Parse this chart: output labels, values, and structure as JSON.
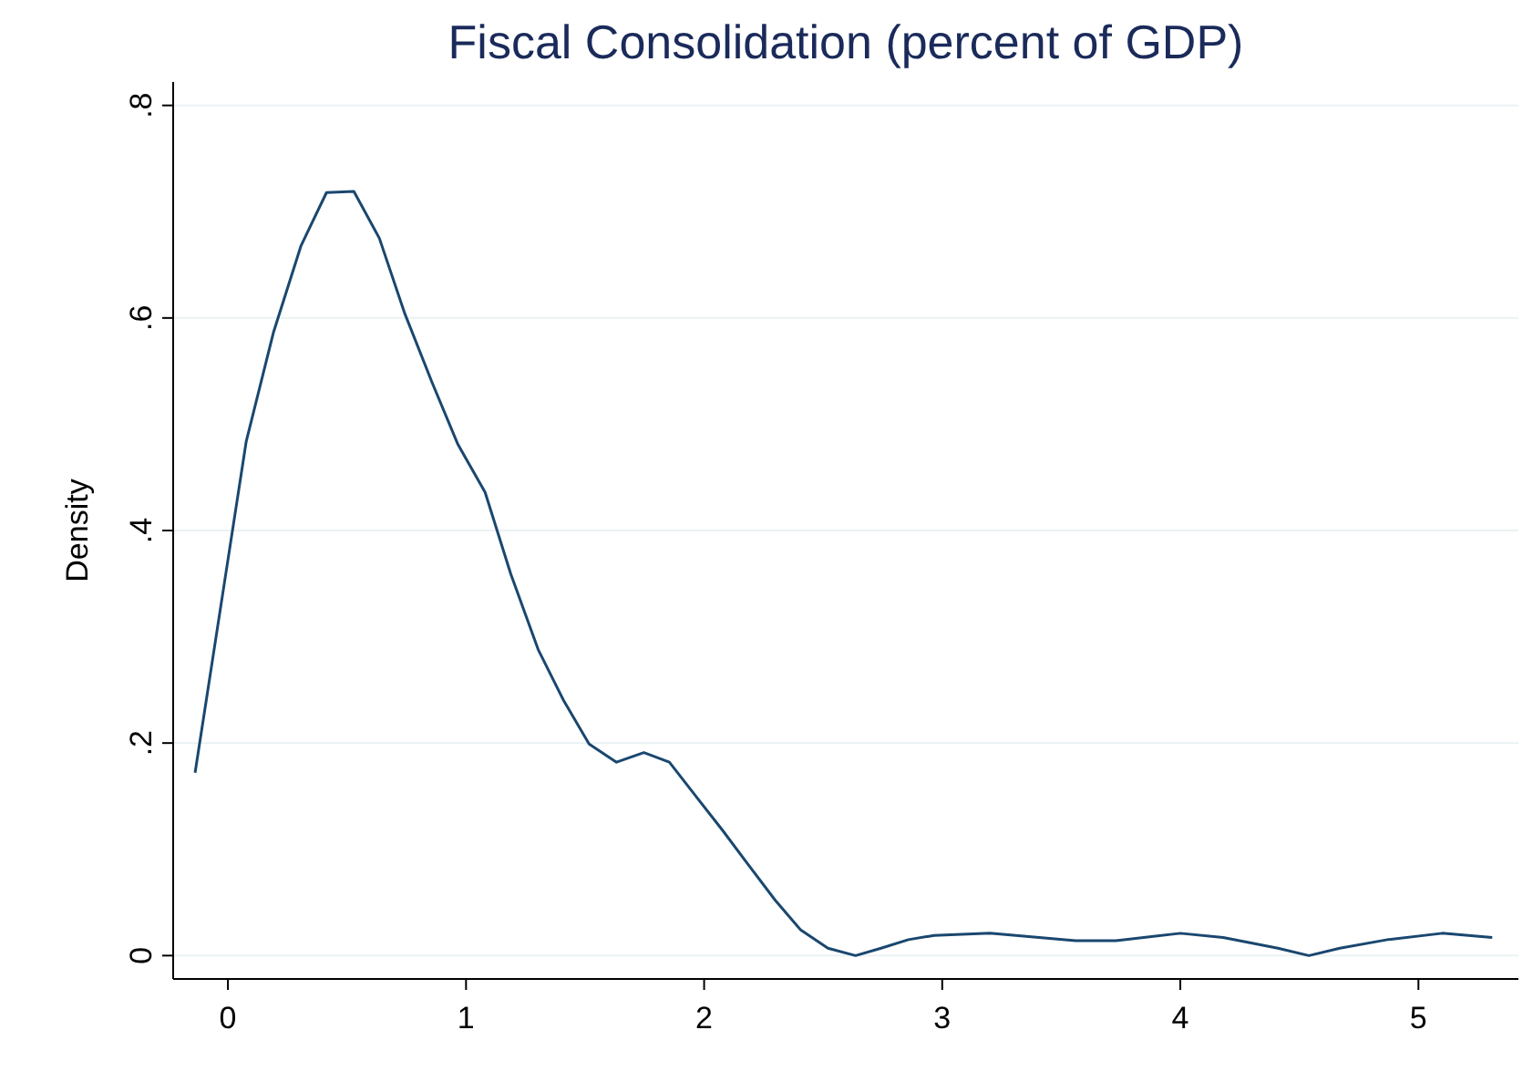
{
  "chart_data": {
    "type": "line",
    "title": "Fiscal Consolidation (percent of GDP)",
    "ylabel": "Density",
    "x": [
      -0.138,
      0.077,
      0.192,
      0.307,
      0.414,
      0.529,
      0.636,
      0.743,
      0.858,
      0.966,
      1.08,
      1.188,
      1.303,
      1.41,
      1.517,
      1.632,
      1.747,
      1.854,
      1.962,
      2.077,
      2.184,
      2.299,
      2.406,
      2.52,
      2.636,
      2.743,
      2.858,
      2.966,
      3.2,
      3.56,
      3.73,
      4.0,
      4.18,
      4.41,
      4.54,
      4.67,
      4.87,
      5.1,
      5.31
    ],
    "series": [
      {
        "color": "#1a476f",
        "values": [
          0.172,
          0.484,
          0.587,
          0.668,
          0.718,
          0.719,
          0.675,
          0.604,
          0.539,
          0.481,
          0.436,
          0.359,
          0.288,
          0.24,
          0.199,
          0.182,
          0.191,
          0.182,
          0.151,
          0.118,
          0.086,
          0.052,
          0.024,
          0.007,
          0.0,
          0.007,
          0.015,
          0.019,
          0.021,
          0.014,
          0.014,
          0.021,
          0.017,
          0.007,
          0.0,
          0.007,
          0.015,
          0.021,
          0.017
        ]
      }
    ],
    "xlim": [
      -0.23,
      5.42
    ],
    "ylim": [
      -0.022,
      0.822
    ],
    "xticks": [
      0,
      1,
      2,
      3,
      4,
      5
    ],
    "yticks": [
      0,
      {
        "value": 0.2,
        "label": ".2"
      },
      {
        "value": 0.4,
        "label": ".4"
      },
      {
        "value": 0.6,
        "label": ".6"
      },
      {
        "value": 0.8,
        "label": ".8"
      }
    ],
    "grid": "y",
    "marker": "none",
    "line_style": "solid"
  }
}
